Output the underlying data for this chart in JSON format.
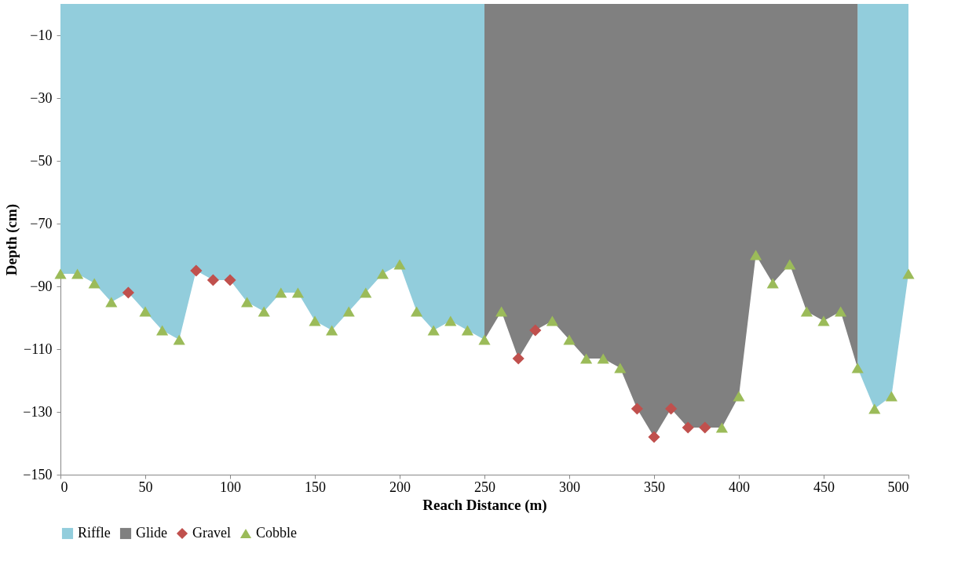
{
  "chart_data": {
    "type": "area",
    "xlabel": "Reach Distance (m)",
    "ylabel": "Depth (cm)",
    "xlim": [
      0,
      500
    ],
    "xticks": [
      0,
      50,
      100,
      150,
      200,
      250,
      300,
      350,
      400,
      450,
      500
    ],
    "ylim": [
      -150,
      0
    ],
    "yticks": [
      -10,
      -30,
      -50,
      -70,
      -90,
      -110,
      -130,
      -150
    ],
    "grid": false,
    "legend": "bottom",
    "series": [
      {
        "name": "Riffle",
        "color": "#92cddc",
        "x": [
          0,
          10,
          20,
          30,
          40,
          50,
          60,
          70,
          80,
          90,
          100,
          110,
          120,
          130,
          140,
          150,
          160,
          170,
          180,
          190,
          200,
          210,
          220,
          230,
          240,
          250,
          260,
          470,
          480,
          490,
          500
        ],
        "values": [
          -86,
          -86,
          -89,
          -95,
          -92,
          -98,
          -104,
          -107,
          -85,
          -88,
          -88,
          -95,
          -98,
          -92,
          -92,
          -101,
          -104,
          -98,
          -92,
          -86,
          -83,
          -98,
          -104,
          -101,
          -104,
          -107,
          null,
          -116,
          -129,
          -125,
          -86
        ]
      },
      {
        "name": "Glide",
        "color": "#808080",
        "x": [
          250,
          260,
          270,
          280,
          290,
          300,
          310,
          320,
          330,
          340,
          350,
          360,
          370,
          380,
          390,
          400,
          410,
          420,
          430,
          440,
          450,
          460,
          470
        ],
        "values": [
          -107,
          -98,
          -113,
          -104,
          -101,
          -107,
          -113,
          -113,
          -116,
          -129,
          -138,
          -129,
          -135,
          -135,
          -135,
          -125,
          -80,
          -89,
          -83,
          -98,
          -101,
          -98,
          -116
        ]
      },
      {
        "name": "Gravel",
        "type": "scatter",
        "marker": "diamond",
        "color": "#c0504d",
        "x": [
          40,
          80,
          90,
          100,
          270,
          280,
          340,
          350,
          360,
          370,
          380
        ],
        "values": [
          -92,
          -85,
          -88,
          -88,
          -113,
          -104,
          -129,
          -138,
          -129,
          -135,
          -135
        ]
      },
      {
        "name": "Cobble",
        "type": "scatter",
        "marker": "triangle",
        "color": "#9bbb59",
        "x": [
          0,
          10,
          20,
          30,
          50,
          60,
          70,
          110,
          120,
          130,
          140,
          150,
          160,
          170,
          180,
          190,
          200,
          210,
          220,
          230,
          240,
          250,
          260,
          290,
          300,
          310,
          320,
          330,
          390,
          400,
          410,
          420,
          430,
          440,
          450,
          460,
          470,
          480,
          490,
          500
        ],
        "values": [
          -86,
          -86,
          -89,
          -95,
          -98,
          -104,
          -107,
          -95,
          -98,
          -92,
          -92,
          -101,
          -104,
          -98,
          -92,
          -86,
          -83,
          -98,
          -104,
          -101,
          -104,
          -107,
          -98,
          -101,
          -107,
          -113,
          -113,
          -116,
          -135,
          -125,
          -80,
          -89,
          -83,
          -98,
          -101,
          -98,
          -116,
          -129,
          -125,
          -86
        ]
      }
    ]
  }
}
